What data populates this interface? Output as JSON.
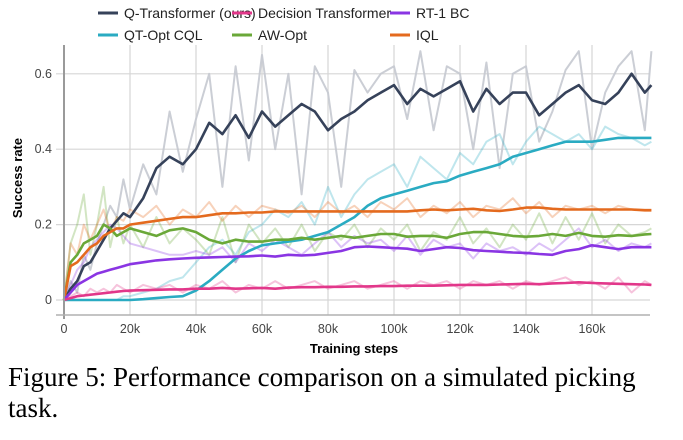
{
  "chart_data": {
    "type": "line",
    "title": "",
    "xlabel": "Training steps",
    "ylabel": "Success rate",
    "xlim": [
      0,
      178000
    ],
    "ylim": [
      -0.04,
      0.66
    ],
    "x_ticks": [
      0,
      20000,
      40000,
      60000,
      80000,
      100000,
      120000,
      140000,
      160000
    ],
    "x_tick_labels": [
      "0",
      "20k",
      "40k",
      "60k",
      "80k",
      "100k",
      "120k",
      "140k",
      "160k"
    ],
    "y_ticks": [
      0,
      0.2,
      0.4,
      0.6
    ],
    "y_tick_labels": [
      "0",
      "0.2",
      "0.4",
      "0.6"
    ],
    "grid": true,
    "legend_position": "top",
    "x": [
      0,
      2000,
      4000,
      6000,
      8000,
      10000,
      12000,
      14000,
      16000,
      18000,
      20000,
      24000,
      28000,
      32000,
      36000,
      40000,
      44000,
      48000,
      52000,
      56000,
      60000,
      64000,
      68000,
      72000,
      76000,
      80000,
      84000,
      88000,
      92000,
      96000,
      100000,
      104000,
      108000,
      112000,
      116000,
      120000,
      124000,
      128000,
      132000,
      136000,
      140000,
      144000,
      148000,
      152000,
      156000,
      160000,
      164000,
      168000,
      172000,
      176000,
      178000
    ],
    "series": [
      {
        "name": "Q-Transformer (ours)",
        "color": "#36425a",
        "values": [
          0,
          0.03,
          0.05,
          0.09,
          0.1,
          0.13,
          0.16,
          0.19,
          0.21,
          0.23,
          0.22,
          0.27,
          0.35,
          0.38,
          0.36,
          0.4,
          0.47,
          0.44,
          0.49,
          0.43,
          0.5,
          0.46,
          0.49,
          0.52,
          0.5,
          0.45,
          0.48,
          0.5,
          0.53,
          0.55,
          0.57,
          0.52,
          0.56,
          0.54,
          0.56,
          0.58,
          0.5,
          0.56,
          0.52,
          0.55,
          0.55,
          0.49,
          0.52,
          0.55,
          0.57,
          0.53,
          0.52,
          0.55,
          0.6,
          0.55,
          0.57
        ],
        "raw": [
          0,
          0.05,
          0.02,
          0.12,
          0.08,
          0.15,
          0.2,
          0.25,
          0.22,
          0.32,
          0.24,
          0.36,
          0.28,
          0.5,
          0.34,
          0.48,
          0.6,
          0.3,
          0.62,
          0.37,
          0.65,
          0.4,
          0.6,
          0.28,
          0.62,
          0.55,
          0.3,
          0.61,
          0.55,
          0.6,
          0.62,
          0.48,
          0.66,
          0.45,
          0.62,
          0.6,
          0.4,
          0.63,
          0.35,
          0.6,
          0.62,
          0.42,
          0.5,
          0.61,
          0.66,
          0.4,
          0.55,
          0.62,
          0.66,
          0.45,
          0.66
        ]
      },
      {
        "name": "Decision Transformer",
        "color": "#e2378a",
        "values": [
          0,
          0.005,
          0.01,
          0.012,
          0.014,
          0.016,
          0.018,
          0.02,
          0.022,
          0.024,
          0.025,
          0.026,
          0.027,
          0.028,
          0.028,
          0.03,
          0.03,
          0.032,
          0.03,
          0.031,
          0.032,
          0.03,
          0.033,
          0.034,
          0.034,
          0.035,
          0.035,
          0.036,
          0.036,
          0.037,
          0.037,
          0.038,
          0.038,
          0.038,
          0.039,
          0.04,
          0.04,
          0.04,
          0.041,
          0.042,
          0.043,
          0.042,
          0.044,
          0.045,
          0.047,
          0.045,
          0.044,
          0.043,
          0.042,
          0.041,
          0.04
        ],
        "raw": [
          0,
          0.01,
          0.02,
          0.01,
          0.03,
          0.02,
          0.03,
          0.02,
          0.04,
          0.03,
          0.02,
          0.04,
          0.03,
          0.04,
          0.02,
          0.04,
          0.03,
          0.05,
          0.02,
          0.04,
          0.03,
          0.05,
          0.03,
          0.04,
          0.05,
          0.03,
          0.04,
          0.05,
          0.03,
          0.04,
          0.05,
          0.03,
          0.05,
          0.04,
          0.05,
          0.03,
          0.05,
          0.04,
          0.05,
          0.03,
          0.05,
          0.04,
          0.05,
          0.06,
          0.04,
          0.05,
          0.03,
          0.06,
          0.02,
          0.05,
          0.04
        ]
      },
      {
        "name": "RT-1 BC",
        "color": "#8a35e3",
        "values": [
          0,
          0.02,
          0.04,
          0.05,
          0.06,
          0.07,
          0.075,
          0.08,
          0.085,
          0.09,
          0.095,
          0.1,
          0.105,
          0.108,
          0.11,
          0.112,
          0.113,
          0.114,
          0.115,
          0.116,
          0.118,
          0.115,
          0.12,
          0.118,
          0.12,
          0.125,
          0.13,
          0.14,
          0.142,
          0.14,
          0.138,
          0.136,
          0.13,
          0.135,
          0.14,
          0.138,
          0.132,
          0.13,
          0.128,
          0.126,
          0.125,
          0.122,
          0.12,
          0.13,
          0.135,
          0.145,
          0.14,
          0.135,
          0.14,
          0.14,
          0.14
        ],
        "raw": [
          0,
          0.04,
          0.08,
          0.1,
          0.14,
          0.16,
          0.18,
          0.2,
          0.19,
          0.17,
          0.15,
          0.14,
          0.13,
          0.12,
          0.12,
          0.13,
          0.12,
          0.14,
          0.1,
          0.15,
          0.13,
          0.16,
          0.14,
          0.12,
          0.15,
          0.18,
          0.14,
          0.17,
          0.15,
          0.16,
          0.13,
          0.17,
          0.12,
          0.16,
          0.14,
          0.15,
          0.11,
          0.15,
          0.13,
          0.14,
          0.12,
          0.15,
          0.13,
          0.16,
          0.19,
          0.14,
          0.16,
          0.13,
          0.15,
          0.14,
          0.15
        ]
      },
      {
        "name": "QT-Opt CQL",
        "color": "#2aabc2",
        "values": [
          0,
          0,
          0,
          0,
          0,
          0,
          0,
          0,
          0,
          0,
          0,
          0.002,
          0.005,
          0.008,
          0.01,
          0.025,
          0.05,
          0.08,
          0.11,
          0.13,
          0.145,
          0.15,
          0.155,
          0.16,
          0.17,
          0.18,
          0.2,
          0.22,
          0.25,
          0.27,
          0.28,
          0.29,
          0.3,
          0.31,
          0.315,
          0.33,
          0.34,
          0.35,
          0.36,
          0.38,
          0.39,
          0.4,
          0.41,
          0.42,
          0.42,
          0.42,
          0.425,
          0.43,
          0.43,
          0.43,
          0.43
        ],
        "raw": [
          0,
          0,
          0,
          0,
          0,
          0,
          0,
          0,
          0,
          0.01,
          0.01,
          0.02,
          0.03,
          0.05,
          0.06,
          0.1,
          0.14,
          0.16,
          0.12,
          0.18,
          0.2,
          0.24,
          0.22,
          0.26,
          0.2,
          0.3,
          0.22,
          0.28,
          0.32,
          0.34,
          0.36,
          0.3,
          0.38,
          0.35,
          0.32,
          0.39,
          0.36,
          0.42,
          0.44,
          0.36,
          0.42,
          0.46,
          0.44,
          0.42,
          0.44,
          0.4,
          0.46,
          0.44,
          0.43,
          0.41,
          0.42
        ]
      },
      {
        "name": "AW-Opt",
        "color": "#6aa838",
        "values": [
          0,
          0.1,
          0.12,
          0.15,
          0.16,
          0.17,
          0.2,
          0.19,
          0.17,
          0.18,
          0.19,
          0.18,
          0.17,
          0.185,
          0.19,
          0.18,
          0.16,
          0.15,
          0.16,
          0.155,
          0.155,
          0.16,
          0.16,
          0.165,
          0.16,
          0.165,
          0.17,
          0.165,
          0.17,
          0.175,
          0.175,
          0.168,
          0.17,
          0.17,
          0.165,
          0.175,
          0.18,
          0.18,
          0.175,
          0.17,
          0.168,
          0.17,
          0.175,
          0.17,
          0.178,
          0.17,
          0.168,
          0.172,
          0.17,
          0.174,
          0.175
        ],
        "raw": [
          0,
          0.15,
          0.2,
          0.28,
          0.12,
          0.2,
          0.3,
          0.14,
          0.22,
          0.15,
          0.2,
          0.14,
          0.22,
          0.15,
          0.19,
          0.16,
          0.12,
          0.22,
          0.1,
          0.2,
          0.15,
          0.19,
          0.14,
          0.2,
          0.13,
          0.18,
          0.16,
          0.2,
          0.14,
          0.19,
          0.16,
          0.2,
          0.13,
          0.18,
          0.16,
          0.22,
          0.15,
          0.19,
          0.14,
          0.2,
          0.16,
          0.23,
          0.15,
          0.22,
          0.16,
          0.23,
          0.15,
          0.2,
          0.17,
          0.18,
          0.19
        ]
      },
      {
        "name": "IQL",
        "color": "#e46a1e",
        "values": [
          0,
          0.09,
          0.1,
          0.12,
          0.14,
          0.15,
          0.17,
          0.18,
          0.19,
          0.19,
          0.2,
          0.205,
          0.21,
          0.215,
          0.22,
          0.22,
          0.225,
          0.23,
          0.23,
          0.232,
          0.232,
          0.235,
          0.235,
          0.235,
          0.235,
          0.235,
          0.235,
          0.235,
          0.235,
          0.235,
          0.235,
          0.235,
          0.238,
          0.24,
          0.238,
          0.24,
          0.242,
          0.238,
          0.236,
          0.24,
          0.245,
          0.245,
          0.242,
          0.24,
          0.24,
          0.24,
          0.24,
          0.24,
          0.24,
          0.238,
          0.238
        ],
        "raw": [
          0,
          0.15,
          0.12,
          0.2,
          0.16,
          0.2,
          0.24,
          0.18,
          0.22,
          0.21,
          0.24,
          0.22,
          0.25,
          0.2,
          0.24,
          0.22,
          0.26,
          0.21,
          0.25,
          0.22,
          0.25,
          0.24,
          0.23,
          0.25,
          0.22,
          0.26,
          0.23,
          0.25,
          0.22,
          0.26,
          0.24,
          0.27,
          0.22,
          0.25,
          0.23,
          0.26,
          0.22,
          0.25,
          0.24,
          0.27,
          0.23,
          0.26,
          0.22,
          0.25,
          0.24,
          0.25,
          0.23,
          0.25,
          0.24,
          0.24,
          0.24
        ]
      }
    ]
  },
  "caption": {
    "text": "Figure 5: Performance comparison on a simulated picking task."
  }
}
